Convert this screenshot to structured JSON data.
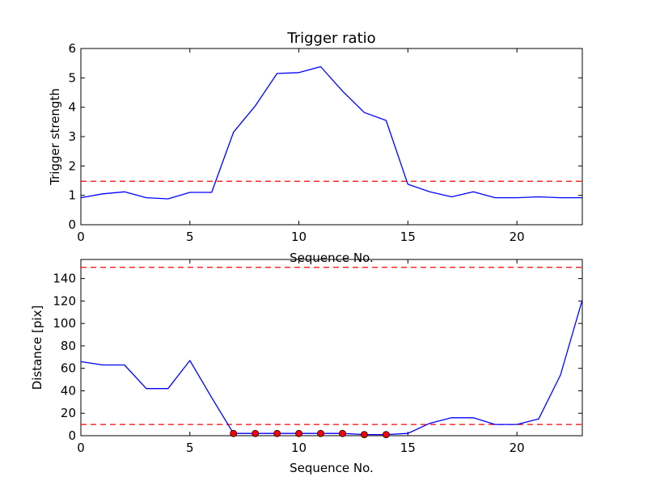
{
  "chart_data": [
    {
      "type": "line",
      "title": "Trigger ratio",
      "xlabel": "Sequence No.",
      "ylabel": "Trigger strength",
      "xlim": [
        0,
        23
      ],
      "ylim": [
        0,
        6
      ],
      "xticks": [
        0,
        5,
        10,
        15,
        20
      ],
      "yticks": [
        0,
        1,
        2,
        3,
        4,
        5,
        6
      ],
      "grid": false,
      "x": [
        0,
        1,
        2,
        3,
        4,
        5,
        6,
        7,
        8,
        9,
        10,
        11,
        12,
        13,
        14,
        15,
        16,
        17,
        18,
        19,
        20,
        21,
        22,
        23
      ],
      "series": [
        {
          "color": "#0000ff",
          "style": "solid",
          "values": [
            0.92,
            1.05,
            1.12,
            0.92,
            0.88,
            1.1,
            1.1,
            3.15,
            4.05,
            5.15,
            5.18,
            5.38,
            4.55,
            3.82,
            3.55,
            1.38,
            1.12,
            0.95,
            1.12,
            0.92,
            0.92,
            0.95,
            0.92,
            0.92
          ]
        }
      ],
      "hlines": [
        {
          "y": 1.48,
          "color": "#ff0000",
          "style": "dashed"
        }
      ]
    },
    {
      "type": "line",
      "title": "",
      "xlabel": "Sequence No.",
      "ylabel": "Distance [pix]",
      "xlim": [
        0,
        23
      ],
      "ylim": [
        0,
        157
      ],
      "xticks": [
        0,
        5,
        10,
        15,
        20
      ],
      "yticks": [
        0,
        20,
        40,
        60,
        80,
        100,
        120,
        140
      ],
      "grid": false,
      "x": [
        0,
        1,
        2,
        3,
        4,
        5,
        6,
        7,
        8,
        9,
        10,
        11,
        12,
        13,
        14,
        15,
        16,
        17,
        18,
        19,
        20,
        21,
        22,
        23
      ],
      "series": [
        {
          "color": "#0000ff",
          "style": "solid",
          "values": [
            66,
            63,
            63,
            42,
            42,
            67,
            34,
            2,
            2,
            2,
            2,
            2,
            2,
            1,
            1,
            2,
            11,
            16,
            16,
            10,
            10,
            15,
            54,
            121
          ]
        }
      ],
      "markers": {
        "color": "#ff0000",
        "points": [
          [
            7,
            2
          ],
          [
            8,
            2
          ],
          [
            9,
            2
          ],
          [
            10,
            2
          ],
          [
            11,
            2
          ],
          [
            12,
            2
          ],
          [
            13,
            1
          ],
          [
            14,
            1
          ]
        ]
      },
      "hlines": [
        {
          "y": 150,
          "color": "#ff0000",
          "style": "dashed"
        },
        {
          "y": 10,
          "color": "#ff0000",
          "style": "dashed"
        }
      ]
    }
  ]
}
